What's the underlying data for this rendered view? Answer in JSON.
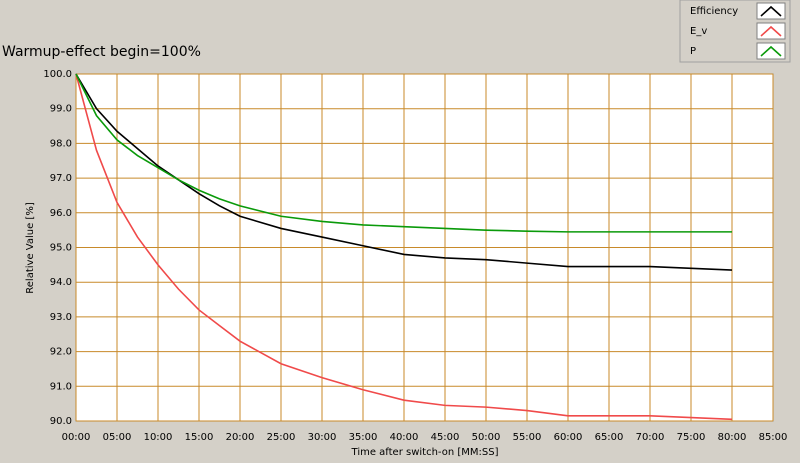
{
  "chart_data": {
    "type": "line",
    "title": "Warmup-effect begin=100%",
    "x_label": "Time after switch-on [MM:SS]",
    "y_label": "Relative Value [%]",
    "x": [
      0,
      2.5,
      5,
      7.5,
      10,
      12.5,
      15,
      17.5,
      20,
      25,
      30,
      35,
      40,
      45,
      50,
      55,
      60,
      65,
      70,
      75,
      80
    ],
    "series": [
      {
        "name": "Efficiency",
        "color": "#000000",
        "values": [
          100,
          99.0,
          98.35,
          97.85,
          97.35,
          96.95,
          96.55,
          96.2,
          95.9,
          95.55,
          95.3,
          95.05,
          94.8,
          94.7,
          94.65,
          94.55,
          94.45,
          94.45,
          94.45,
          94.4,
          94.35
        ]
      },
      {
        "name": "E_v",
        "color": "#f04a4a",
        "values": [
          100,
          97.8,
          96.3,
          95.3,
          94.5,
          93.8,
          93.2,
          92.75,
          92.3,
          91.65,
          91.25,
          90.9,
          90.6,
          90.45,
          90.4,
          90.3,
          90.15,
          90.15,
          90.15,
          90.1,
          90.05
        ]
      },
      {
        "name": "P",
        "color": "#0a9a0a",
        "values": [
          100,
          98.8,
          98.1,
          97.65,
          97.3,
          96.95,
          96.65,
          96.4,
          96.2,
          95.9,
          95.75,
          95.65,
          95.6,
          95.55,
          95.5,
          95.47,
          95.45,
          95.45,
          95.45,
          95.45,
          95.45
        ]
      }
    ],
    "xlim": [
      0,
      85
    ],
    "xticks": [
      {
        "value": 0,
        "label": "00:00"
      },
      {
        "value": 5,
        "label": "05:00"
      },
      {
        "value": 10,
        "label": "10:00"
      },
      {
        "value": 15,
        "label": "15:00"
      },
      {
        "value": 20,
        "label": "20:00"
      },
      {
        "value": 25,
        "label": "25:00"
      },
      {
        "value": 30,
        "label": "30:00"
      },
      {
        "value": 35,
        "label": "35:00"
      },
      {
        "value": 40,
        "label": "40:00"
      },
      {
        "value": 45,
        "label": "45:00"
      },
      {
        "value": 50,
        "label": "50:00"
      },
      {
        "value": 55,
        "label": "55:00"
      },
      {
        "value": 60,
        "label": "60:00"
      },
      {
        "value": 65,
        "label": "65:00"
      },
      {
        "value": 70,
        "label": "70:00"
      },
      {
        "value": 75,
        "label": "75:00"
      },
      {
        "value": 80,
        "label": "80:00"
      },
      {
        "value": 85,
        "label": "85:00"
      }
    ],
    "ylim": [
      90,
      100
    ],
    "yticks": [
      {
        "value": 90,
        "label": "90.0"
      },
      {
        "value": 91,
        "label": "91.0"
      },
      {
        "value": 92,
        "label": "92.0"
      },
      {
        "value": 93,
        "label": "93.0"
      },
      {
        "value": 94,
        "label": "94.0"
      },
      {
        "value": 95,
        "label": "95.0"
      },
      {
        "value": 96,
        "label": "96.0"
      },
      {
        "value": 97,
        "label": "97.0"
      },
      {
        "value": 98,
        "label": "98.0"
      },
      {
        "value": 99,
        "label": "99.0"
      },
      {
        "value": {
          "value": 100,
          "label": "100.0"
        }
      }
    ],
    "grid": true,
    "grid_color": "#c88a2a",
    "legend": "top-right"
  }
}
